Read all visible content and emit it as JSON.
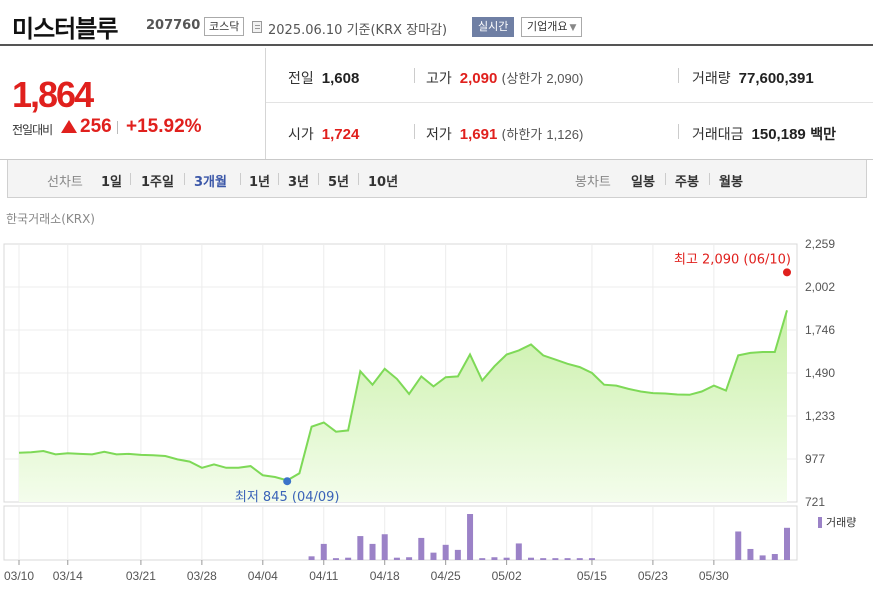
{
  "header": {
    "name": "미스터블루",
    "code": "207760",
    "market": "코스닥",
    "as_of": "2025.06.10  기준(KRX 장마감)",
    "realtime_label": "실시간",
    "overview_label": "기업개요"
  },
  "quote": {
    "price": "1,864",
    "prev_label": "전일대비",
    "change": "256",
    "change_pct": "+15.92%",
    "prev_close_label": "전일",
    "prev_close": "1,608",
    "high_label": "고가",
    "high": "2,090",
    "upper_limit_label": "(상한가",
    "upper_limit": "2,090)",
    "volume_label": "거래량",
    "volume": "77,600,391",
    "open_label": "시가",
    "open": "1,724",
    "low_label": "저가",
    "low": "1,691",
    "lower_limit_label": "(하한가",
    "lower_limit": "1,126)",
    "amount_label": "거래대금",
    "amount": "150,189",
    "amount_unit": "백만"
  },
  "period_bar": {
    "line_label": "선차트",
    "line_periods": [
      "1일",
      "1주일",
      "3개월",
      "1년",
      "3년",
      "5년",
      "10년"
    ],
    "active_period": "3개월",
    "candle_label": "봉차트",
    "candle_periods": [
      "일봉",
      "주봉",
      "월봉"
    ]
  },
  "exchange_label": "한국거래소(KRX)",
  "colors": {
    "up": "#e0201d",
    "accent": "#3b57a8",
    "line": "#7ed957",
    "volume": "#9b82c7"
  },
  "chart_data": {
    "type": "area",
    "y_ticks": [
      "2,259",
      "2,002",
      "1,746",
      "1,490",
      "1,233",
      "977",
      "721"
    ],
    "ylim": [
      721,
      2259
    ],
    "x_tick_labels": [
      "03/10",
      "03/14",
      "03/21",
      "03/28",
      "04/04",
      "04/11",
      "04/18",
      "04/25",
      "05/02",
      "05/15",
      "05/23",
      "05/30"
    ],
    "x_tick_index": [
      0,
      4,
      10,
      15,
      20,
      25,
      30,
      35,
      40,
      47,
      52,
      57
    ],
    "price": [
      1015,
      1018,
      1025,
      1005,
      1012,
      1008,
      1005,
      1020,
      1005,
      1008,
      1002,
      1000,
      995,
      975,
      962,
      925,
      945,
      925,
      925,
      935,
      880,
      870,
      850,
      892,
      1170,
      1195,
      1140,
      1148,
      1500,
      1420,
      1515,
      1455,
      1365,
      1470,
      1410,
      1465,
      1470,
      1600,
      1445,
      1530,
      1600,
      1625,
      1660,
      1595,
      1570,
      1545,
      1525,
      1490,
      1420,
      1415,
      1395,
      1380,
      1370,
      1368,
      1362,
      1360,
      1380,
      1415,
      1385,
      1595,
      1610,
      1615,
      1615,
      1864
    ],
    "volume": [
      0,
      0,
      0,
      0,
      0,
      0,
      0,
      0,
      0,
      0,
      0,
      0,
      0,
      0,
      0,
      0,
      0,
      0,
      0,
      0,
      0,
      0,
      0,
      0,
      8,
      35,
      4,
      5,
      52,
      35,
      56,
      5,
      6,
      48,
      16,
      33,
      22,
      100,
      4,
      6,
      5,
      36,
      5,
      4,
      4,
      4,
      4,
      4,
      0,
      0,
      0,
      0,
      0,
      0,
      0,
      0,
      0,
      0,
      0,
      62,
      24,
      10,
      13,
      70
    ],
    "max_label": "최고 2,090 (06/10)",
    "min_label": "최저 845 (04/09)",
    "max_point": {
      "index": 63,
      "value": 2090
    },
    "min_point": {
      "index": 22,
      "value": 845
    },
    "volume_legend": "거래량"
  }
}
